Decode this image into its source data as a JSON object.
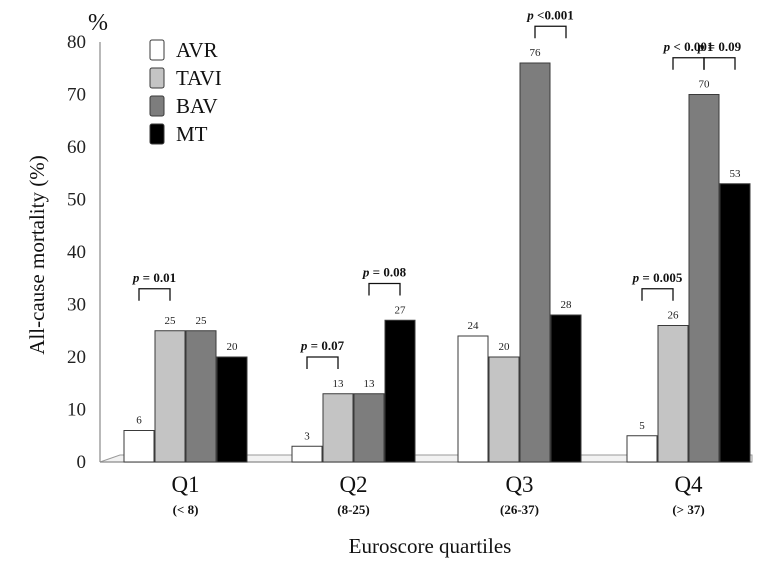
{
  "chart_data": {
    "type": "bar",
    "title": "",
    "unit_label": "%",
    "ylabel": "All-cause mortality  (%)",
    "xlabel": "Euroscore quartiles",
    "ylim": [
      0,
      80
    ],
    "yticks": [
      "0",
      "10",
      "20",
      "30",
      "40",
      "50",
      "60",
      "70",
      "80"
    ],
    "categories": [
      "Q1",
      "Q2",
      "Q3",
      "Q4"
    ],
    "category_ranges": [
      "(< 8)",
      "(8-25)",
      "(26-37)",
      "(> 37)"
    ],
    "series": [
      {
        "name": "AVR",
        "color": "#ffffff",
        "values": [
          6,
          3,
          24,
          5
        ]
      },
      {
        "name": "TAVI",
        "color": "#c4c4c4",
        "values": [
          25,
          13,
          20,
          26
        ]
      },
      {
        "name": "BAV",
        "color": "#7d7d7d",
        "values": [
          25,
          13,
          76,
          70
        ]
      },
      {
        "name": "MT",
        "color": "#000000",
        "values": [
          20,
          27,
          28,
          53
        ]
      }
    ],
    "value_labels": [
      [
        "6",
        "25",
        "25",
        "20"
      ],
      [
        "3",
        "13",
        "13",
        "27"
      ],
      [
        "24",
        "20",
        "76",
        "28"
      ],
      [
        "5",
        "26",
        "70",
        "53"
      ]
    ],
    "legend_position": "top-left",
    "grid": false,
    "comparisons": [
      {
        "label": "p = 0.01",
        "category": 0,
        "from_series": 0,
        "to_series": 1,
        "level": 33
      },
      {
        "label": "p = 0.07",
        "category": 1,
        "from_series": 0,
        "to_series": 1,
        "level": 20
      },
      {
        "label": "p = 0.08",
        "category": 1,
        "from_series": 2,
        "to_series": 3,
        "level": 34
      },
      {
        "label": "p <0.001",
        "category": 2,
        "from_series": 2,
        "to_series": 3,
        "level": 83
      },
      {
        "label": "p = 0.005",
        "category": 3,
        "from_series": 0,
        "to_series": 1,
        "level": 33
      },
      {
        "label": "p < 0.001",
        "category": 3,
        "from_series": 1,
        "to_series": 2,
        "level": 77
      },
      {
        "label": "p = 0.09",
        "category": 3,
        "from_series": 2,
        "to_series": 3,
        "level": 77
      }
    ]
  }
}
